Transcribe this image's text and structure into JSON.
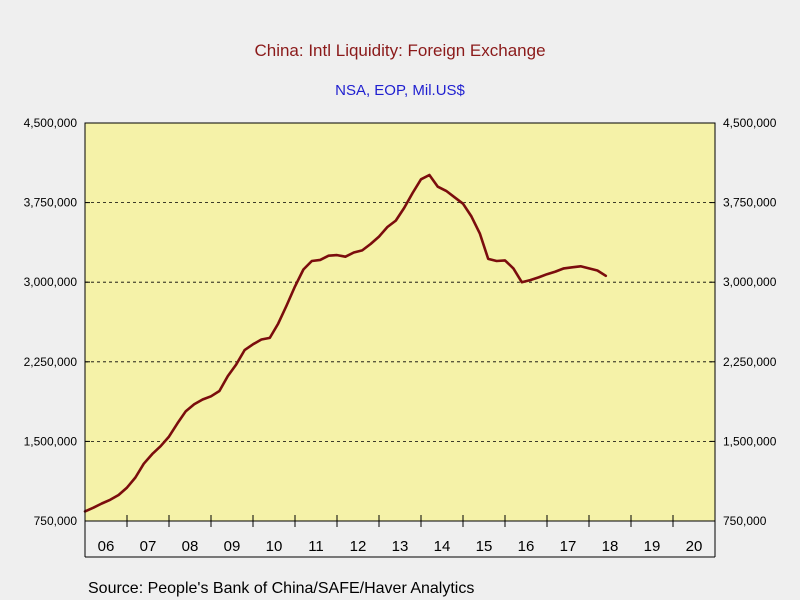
{
  "chart_data": {
    "type": "line",
    "title": "China: Intl Liquidity: Foreign Exchange",
    "subtitle": "NSA, EOP, Mil.US$",
    "source": "Source:  People's Bank of China/SAFE/Haver Analytics",
    "ylim": [
      750000,
      4500000
    ],
    "y_ticks": [
      750000,
      1500000,
      2250000,
      3000000,
      3750000,
      4500000
    ],
    "y_tick_labels": [
      "750,000",
      "1,500,000",
      "2,250,000",
      "3,000,000",
      "3,750,000",
      "4,500,000"
    ],
    "xlim": [
      2006.0,
      2021.0
    ],
    "x_tick_labels": [
      "06",
      "07",
      "08",
      "09",
      "10",
      "11",
      "12",
      "13",
      "14",
      "15",
      "16",
      "17",
      "18",
      "19",
      "20"
    ],
    "grid": "horizontal dashed",
    "background_color": "#f5f2a8",
    "series": [
      {
        "color": "#7b0d0d",
        "x": [
          2006.0,
          2006.2,
          2006.4,
          2006.6,
          2006.8,
          2007.0,
          2007.2,
          2007.4,
          2007.6,
          2007.8,
          2008.0,
          2008.2,
          2008.4,
          2008.6,
          2008.8,
          2009.0,
          2009.2,
          2009.4,
          2009.6,
          2009.8,
          2010.0,
          2010.2,
          2010.4,
          2010.6,
          2010.8,
          2011.0,
          2011.2,
          2011.4,
          2011.6,
          2011.8,
          2012.0,
          2012.2,
          2012.4,
          2012.6,
          2012.8,
          2013.0,
          2013.2,
          2013.4,
          2013.6,
          2013.8,
          2014.0,
          2014.2,
          2014.4,
          2014.6,
          2014.8,
          2015.0,
          2015.2,
          2015.4,
          2015.6,
          2015.8,
          2016.0,
          2016.2,
          2016.4,
          2016.6,
          2016.8,
          2017.0,
          2017.2,
          2017.4,
          2017.6,
          2017.8,
          2018.0,
          2018.2,
          2018.4
        ],
        "values": [
          840000,
          875000,
          915000,
          950000,
          995000,
          1065000,
          1160000,
          1290000,
          1380000,
          1455000,
          1545000,
          1670000,
          1785000,
          1850000,
          1895000,
          1925000,
          1975000,
          2115000,
          2225000,
          2360000,
          2415000,
          2460000,
          2475000,
          2610000,
          2780000,
          2960000,
          3120000,
          3200000,
          3210000,
          3250000,
          3255000,
          3240000,
          3280000,
          3300000,
          3360000,
          3430000,
          3520000,
          3580000,
          3700000,
          3840000,
          3970000,
          4010000,
          3900000,
          3860000,
          3800000,
          3740000,
          3620000,
          3460000,
          3220000,
          3200000,
          3205000,
          3130000,
          3000000,
          3020000,
          3045000,
          3075000,
          3100000,
          3130000,
          3140000,
          3150000,
          3130000,
          3110000,
          3060000
        ]
      }
    ]
  }
}
